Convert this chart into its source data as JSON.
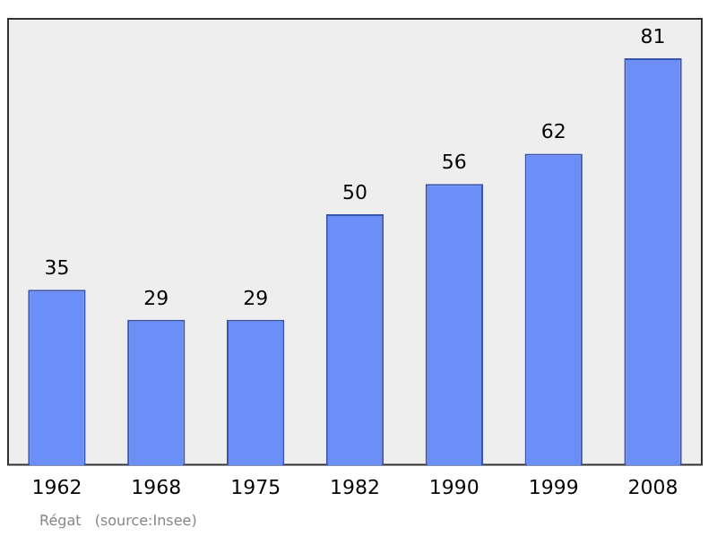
{
  "chart_data": {
    "type": "bar",
    "categories": [
      "1962",
      "1968",
      "1975",
      "1982",
      "1990",
      "1999",
      "2008"
    ],
    "values": [
      35,
      29,
      29,
      50,
      56,
      62,
      81
    ],
    "color": "#6b8ff7",
    "ylim": [
      0,
      89
    ],
    "data_labels": true,
    "grid": false,
    "legend": false,
    "annotations": [
      "Régat   (source:Insee)"
    ]
  }
}
